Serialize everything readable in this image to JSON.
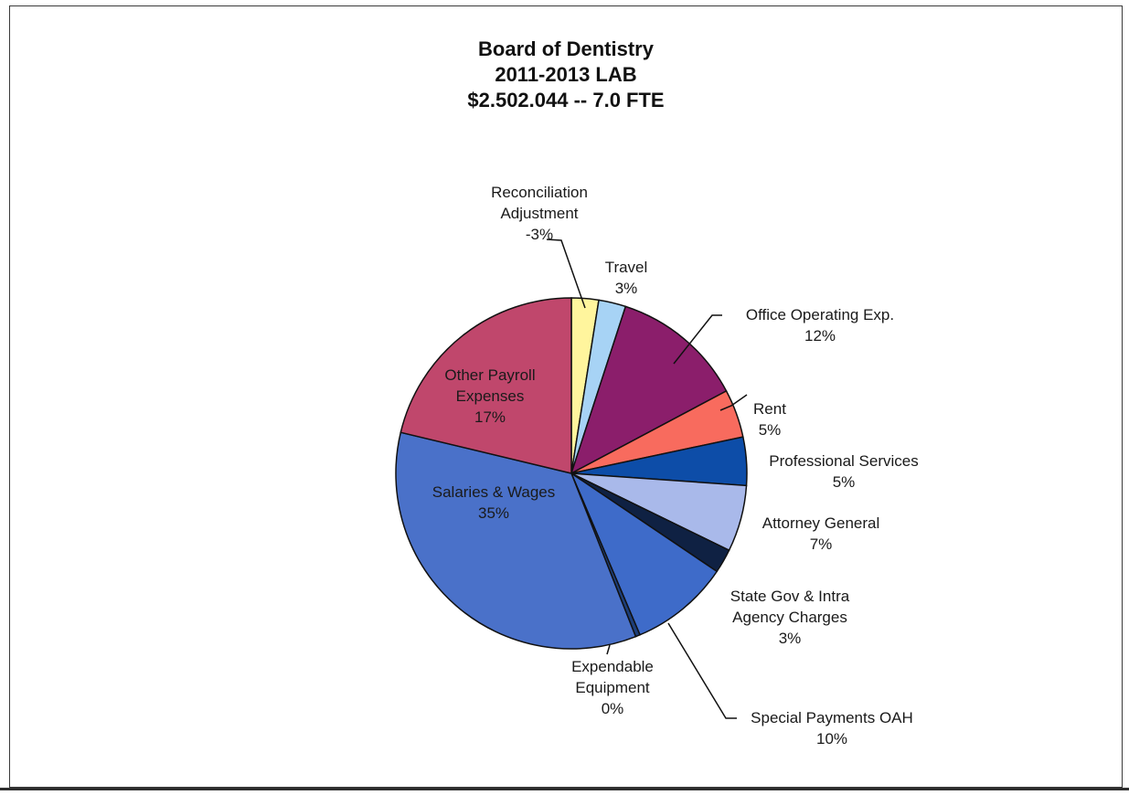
{
  "title_lines": [
    "Board of Dentistry",
    "2011-2013 LAB",
    "$2.502.044  -- 7.0 FTE"
  ],
  "chart_data": {
    "type": "pie",
    "title": "Board of Dentistry 2011-2013 LAB $2.502.044 -- 7.0 FTE",
    "slices": [
      {
        "name": "Reconciliation Adjustment",
        "value": -3,
        "label": "-3%",
        "color": "#FFF59D"
      },
      {
        "name": "Travel",
        "value": 3,
        "label": "3%",
        "color": "#A7D3F5"
      },
      {
        "name": "Office Operating Exp.",
        "value": 12,
        "label": "12%",
        "color": "#8B1E6B"
      },
      {
        "name": "Rent",
        "value": 5,
        "label": "5%",
        "color": "#F86B5E"
      },
      {
        "name": "Professional Services",
        "value": 5,
        "label": "5%",
        "color": "#0D4DA8"
      },
      {
        "name": "Attorney General",
        "value": 7,
        "label": "7%",
        "color": "#A9B9EA"
      },
      {
        "name": "State Gov & Intra Agency Charges",
        "value": 3,
        "label": "3%",
        "color": "#0F2143"
      },
      {
        "name": "Special Payments OAH",
        "value": 10,
        "label": "10%",
        "color": "#3E6BC9"
      },
      {
        "name": "Expendable Equipment",
        "value": 0,
        "label": "0%",
        "color": "#1D3E7A"
      },
      {
        "name": "Salaries & Wages",
        "value": 35,
        "label": "35%",
        "color": "#4A71C9"
      },
      {
        "name": "Other Payroll Expenses",
        "value": 17,
        "label": "17%",
        "color": "#C0476C"
      }
    ]
  },
  "labels": [
    {
      "lines": [
        "Reconciliation",
        "Adjustment",
        "-3%"
      ]
    },
    {
      "lines": [
        "Travel",
        "3%"
      ]
    },
    {
      "lines": [
        "Office Operating Exp.",
        "12%"
      ]
    },
    {
      "lines": [
        "Rent",
        "5%"
      ]
    },
    {
      "lines": [
        "Professional Services",
        "5%"
      ]
    },
    {
      "lines": [
        "Attorney General",
        "7%"
      ]
    },
    {
      "lines": [
        "State Gov & Intra",
        "Agency Charges",
        "3%"
      ]
    },
    {
      "lines": [
        "Special Payments OAH",
        "10%"
      ]
    },
    {
      "lines": [
        "Expendable",
        "Equipment",
        "0%"
      ]
    },
    {
      "lines": [
        "Salaries & Wages",
        "35%"
      ]
    },
    {
      "lines": [
        "Other Payroll",
        "Expenses",
        "17%"
      ]
    }
  ]
}
